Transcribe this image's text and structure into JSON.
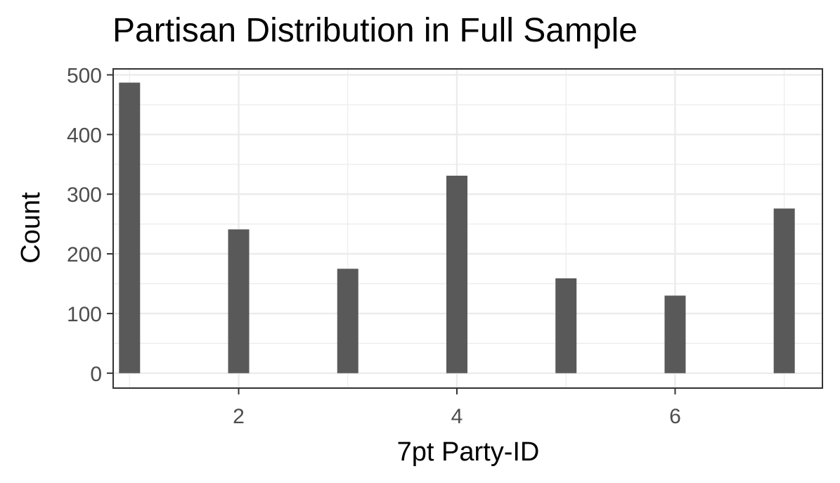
{
  "chart_data": {
    "type": "bar",
    "title": "Partisan Distribution in Full Sample",
    "xlabel": "7pt Party-ID",
    "ylabel": "Count",
    "x": [
      1,
      2,
      3,
      4,
      5,
      6,
      7
    ],
    "values": [
      487,
      241,
      175,
      331,
      159,
      130,
      276
    ],
    "xlim": [
      0.85,
      7.35
    ],
    "ylim": [
      -25,
      510
    ],
    "x_ticks": [
      2,
      4,
      6
    ],
    "y_ticks": [
      0,
      100,
      200,
      300,
      400,
      500
    ],
    "grid": true,
    "bar_color": "#595959",
    "grid_color": "#ebebeb",
    "panel_border_color": "#333333"
  }
}
